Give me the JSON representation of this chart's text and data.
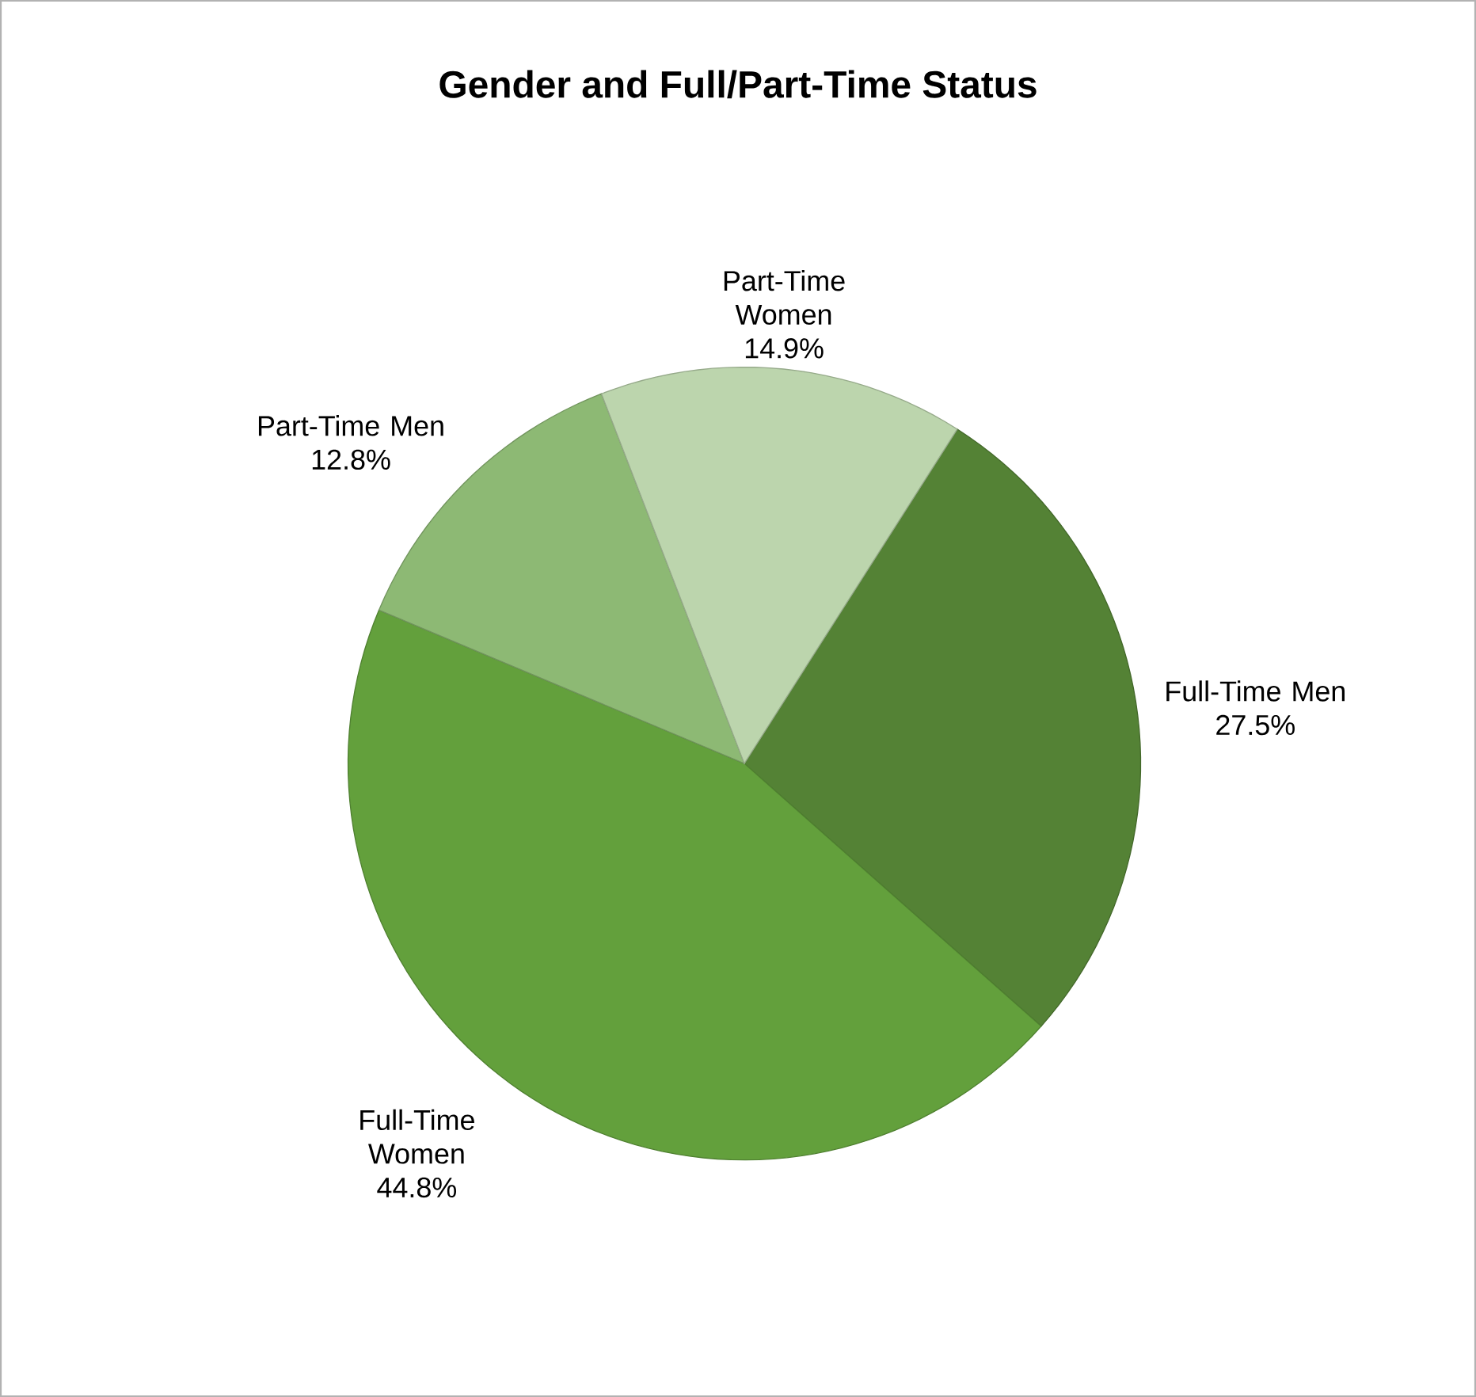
{
  "chart_data": {
    "type": "pie",
    "title": "Gender and Full/Part-Time Status",
    "categories": [
      "Full-Time Men",
      "Full-Time Women",
      "Part-Time Men",
      "Part-Time Women"
    ],
    "values": [
      27.5,
      44.8,
      12.8,
      14.9
    ],
    "value_labels": [
      "27.5%",
      "44.8%",
      "12.8%",
      "14.9%"
    ],
    "colors": [
      "#548235",
      "#63a03c",
      "#8db974",
      "#bcd5ad"
    ]
  }
}
